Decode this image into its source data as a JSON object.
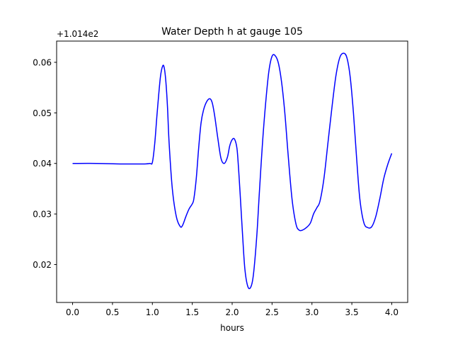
{
  "chart_data": {
    "type": "line",
    "title": "Water Depth h at gauge 105",
    "xlabel": "hours",
    "ylabel": "",
    "offset_label": "+1.014e2",
    "xlim": [
      -0.2,
      4.2
    ],
    "ylim": [
      0.0125,
      0.0642
    ],
    "xticks": [
      0.0,
      0.5,
      1.0,
      1.5,
      2.0,
      2.5,
      3.0,
      3.5,
      4.0
    ],
    "xtick_labels": [
      "0.0",
      "0.5",
      "1.0",
      "1.5",
      "2.0",
      "2.5",
      "3.0",
      "3.5",
      "4.0"
    ],
    "yticks": [
      0.02,
      0.03,
      0.04,
      0.05,
      0.06
    ],
    "ytick_labels": [
      "0.02",
      "0.03",
      "0.04",
      "0.05",
      "0.06"
    ],
    "grid": false,
    "series": [
      {
        "color": "#0000ff",
        "x": [
          0.0,
          0.3,
          0.6,
          0.8,
          0.9,
          0.97,
          1.0,
          1.03,
          1.06,
          1.1,
          1.13,
          1.15,
          1.17,
          1.19,
          1.21,
          1.25,
          1.3,
          1.35,
          1.38,
          1.42,
          1.46,
          1.5,
          1.52,
          1.55,
          1.58,
          1.61,
          1.64,
          1.68,
          1.72,
          1.75,
          1.78,
          1.82,
          1.86,
          1.9,
          1.94,
          1.97,
          2.0,
          2.03,
          2.06,
          2.08,
          2.1,
          2.13,
          2.16,
          2.2,
          2.24,
          2.27,
          2.31,
          2.34,
          2.38,
          2.42,
          2.46,
          2.5,
          2.54,
          2.58,
          2.62,
          2.66,
          2.7,
          2.75,
          2.8,
          2.84,
          2.88,
          2.93,
          2.98,
          3.02,
          3.06,
          3.1,
          3.15,
          3.2,
          3.25,
          3.3,
          3.35,
          3.4,
          3.44,
          3.48,
          3.52,
          3.56,
          3.6,
          3.65,
          3.7,
          3.75,
          3.8,
          3.85,
          3.9,
          3.95,
          4.0
        ],
        "y": [
          0.04,
          0.04,
          0.0399,
          0.0399,
          0.0399,
          0.04,
          0.0402,
          0.044,
          0.05,
          0.057,
          0.0593,
          0.0588,
          0.056,
          0.051,
          0.044,
          0.035,
          0.0295,
          0.0275,
          0.0278,
          0.0295,
          0.031,
          0.032,
          0.033,
          0.037,
          0.043,
          0.048,
          0.0505,
          0.0522,
          0.0528,
          0.052,
          0.0495,
          0.045,
          0.041,
          0.04,
          0.0412,
          0.0435,
          0.0447,
          0.0448,
          0.043,
          0.039,
          0.034,
          0.026,
          0.019,
          0.0155,
          0.0158,
          0.0185,
          0.026,
          0.034,
          0.044,
          0.052,
          0.0582,
          0.0612,
          0.0613,
          0.0598,
          0.056,
          0.05,
          0.042,
          0.033,
          0.028,
          0.0268,
          0.0268,
          0.0273,
          0.0282,
          0.03,
          0.0312,
          0.0325,
          0.037,
          0.044,
          0.051,
          0.0573,
          0.061,
          0.0618,
          0.0608,
          0.057,
          0.05,
          0.041,
          0.033,
          0.0283,
          0.0273,
          0.0275,
          0.0295,
          0.033,
          0.037,
          0.0398,
          0.042
        ]
      }
    ]
  }
}
